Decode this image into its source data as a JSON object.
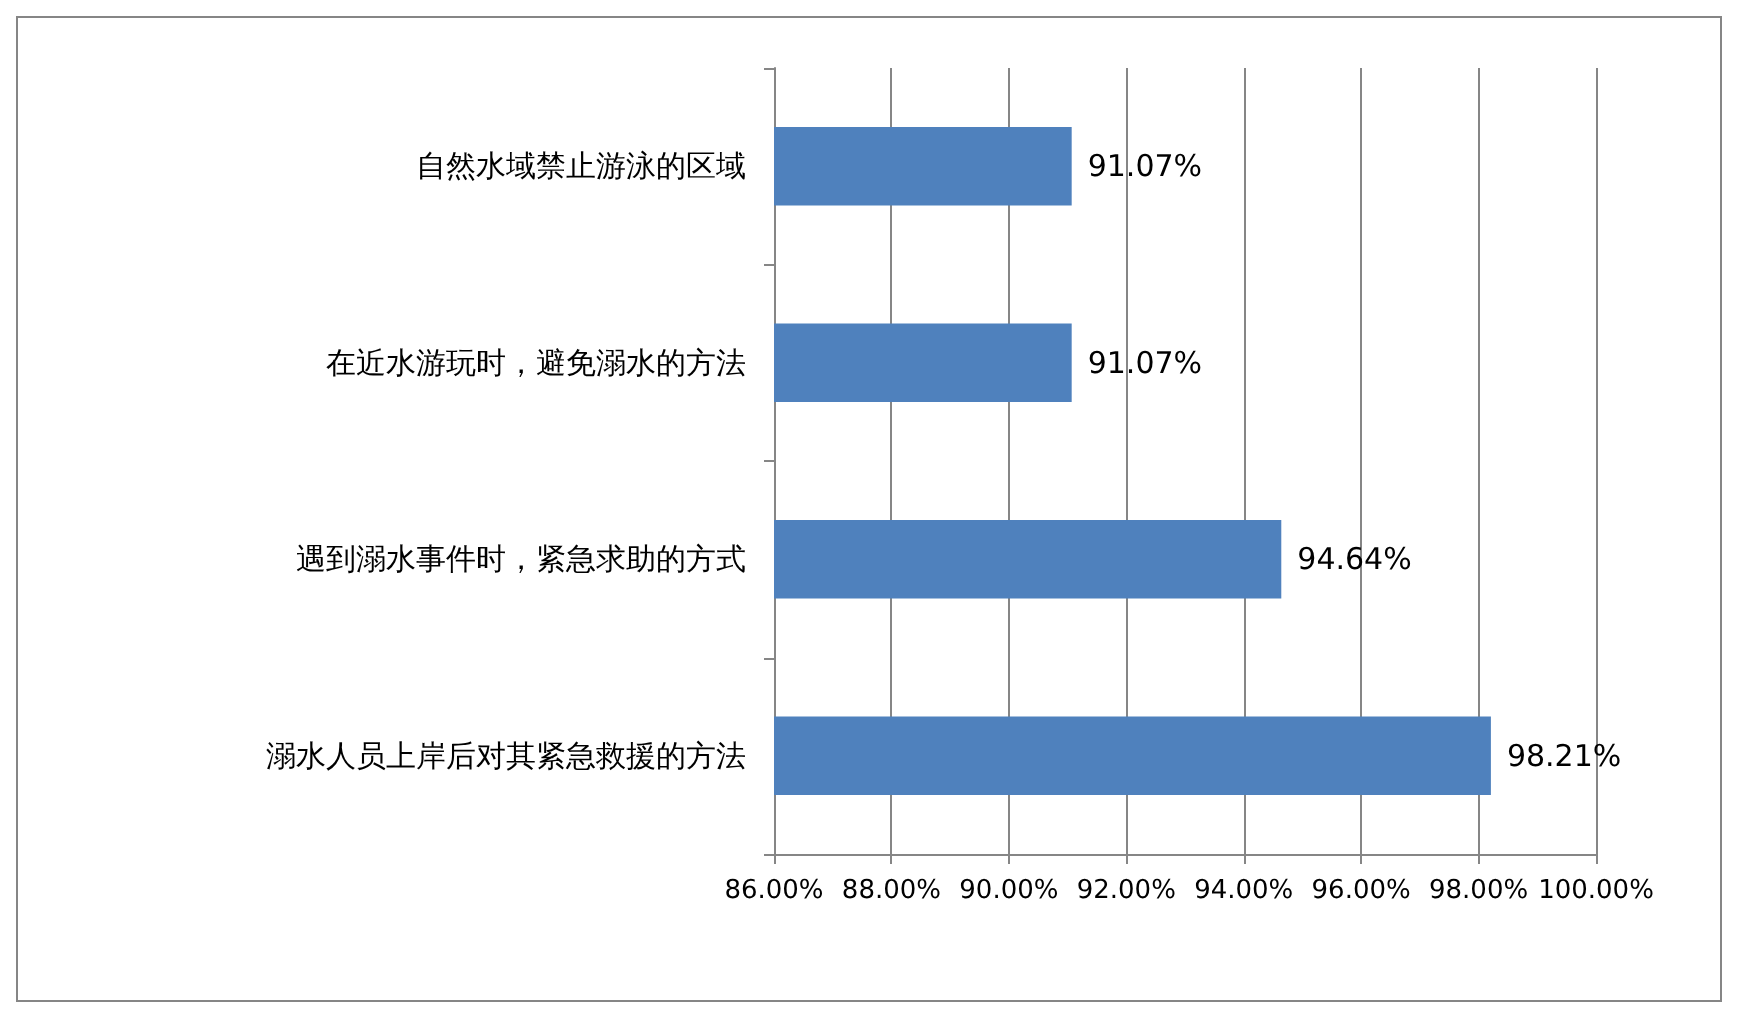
{
  "chart_data": {
    "type": "bar",
    "orientation": "horizontal",
    "categories": [
      "自然水域禁止游泳的区域",
      "在近水游玩时，避免溺水的方法",
      "遇到溺水事件时，紧急求助的方式",
      "溺水人员上岸后对其紧急救援的方法"
    ],
    "values": [
      91.07,
      91.07,
      94.64,
      98.21
    ],
    "value_labels": [
      "91.07%",
      "91.07%",
      "94.64%",
      "98.21%"
    ],
    "color": "#4f81bd",
    "xlim": [
      86,
      100
    ],
    "xticks": [
      {
        "value": 86,
        "label": "86.00%"
      },
      {
        "value": 88,
        "label": "88.00%"
      },
      {
        "value": 90,
        "label": "90.00%"
      },
      {
        "value": 92,
        "label": "92.00%"
      },
      {
        "value": 94,
        "label": "94.00%"
      },
      {
        "value": 96,
        "label": "96.00%"
      },
      {
        "value": 98,
        "label": "98.00%"
      },
      {
        "value": 100,
        "label": "100.00%"
      }
    ],
    "grid": "x"
  }
}
